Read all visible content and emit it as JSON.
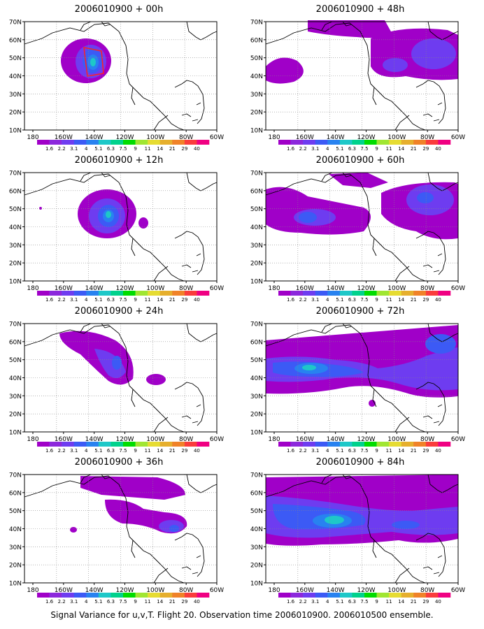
{
  "panels": [
    {
      "title": "2006010900 + 00h"
    },
    {
      "title": "2006010900 + 12h"
    },
    {
      "title": "2006010900 + 24h"
    },
    {
      "title": "2006010900 + 36h"
    },
    {
      "title": "2006010900 + 48h"
    },
    {
      "title": "2006010900 + 60h"
    },
    {
      "title": "2006010900 + 72h"
    },
    {
      "title": "2006010900 + 84h"
    }
  ],
  "axes": {
    "y_ticks": [
      "70N",
      "60N",
      "50N",
      "40N",
      "30N",
      "20N",
      "10N"
    ],
    "x_ticks": [
      "180",
      "160W",
      "140W",
      "120W",
      "100W",
      "80W",
      "60W"
    ]
  },
  "colorbar": {
    "labels": [
      "1.6",
      "2.2",
      "3.1",
      "4",
      "5.1",
      "6.3",
      "7.5",
      "9",
      "11",
      "14",
      "21",
      "29",
      "40"
    ],
    "colors": [
      "#a000c8",
      "#8c28dc",
      "#6e3cf0",
      "#3c5af5",
      "#2882f0",
      "#1ec8c8",
      "#00d28c",
      "#00dc00",
      "#a0e632",
      "#e6dc32",
      "#e6af2d",
      "#f08228",
      "#fa3c3c",
      "#f00082"
    ]
  },
  "caption": "Signal Variance for u,v,T. Flight 20. Observation time 2006010900. 2006010500 ensemble.",
  "chart_data": {
    "type": "contour-map-panels",
    "variable": "Signal Variance for u,v,T",
    "forecast_hours": [
      0,
      12,
      24,
      36,
      48,
      60,
      72,
      84
    ],
    "lat_range": [
      10,
      70
    ],
    "lon_range": [
      -180,
      -60
    ],
    "levels": [
      1.6,
      2.2,
      3.1,
      4,
      5.1,
      6.3,
      7.5,
      9,
      11,
      14,
      21,
      29,
      40
    ]
  }
}
